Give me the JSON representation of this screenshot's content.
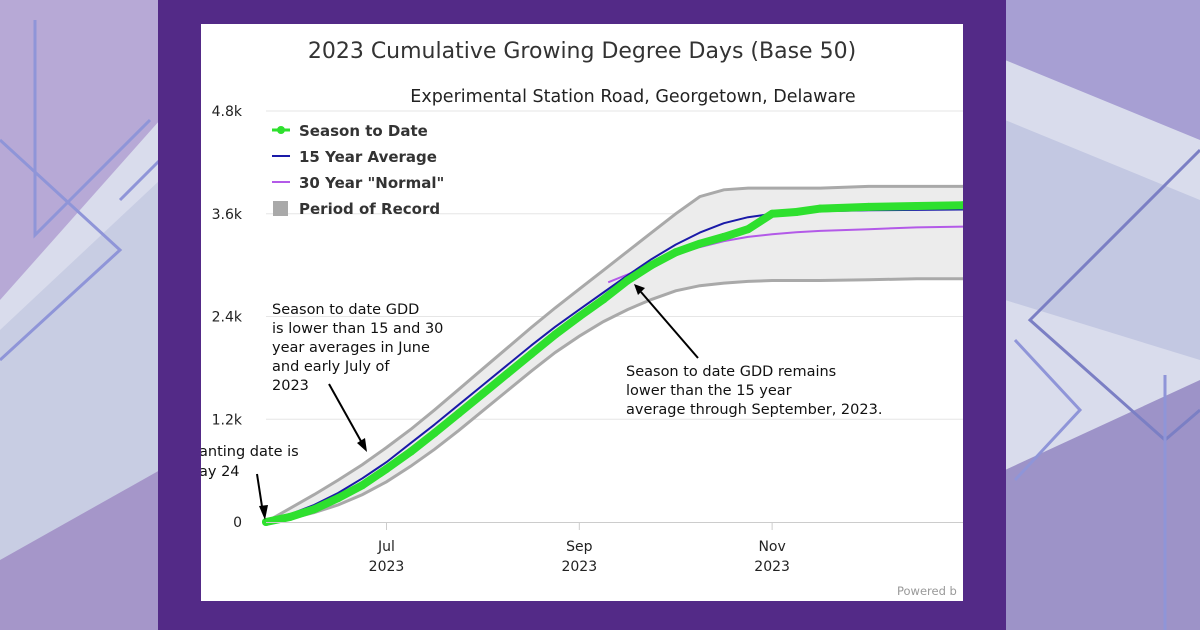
{
  "colors": {
    "frame": "#532a87",
    "season": "#2ee02e",
    "avg15": "#1a1aa8",
    "normal30": "#b35ae8",
    "record_fill": "#ececec",
    "record_stroke": "#a9a9a9",
    "grid": "#e6e6e6"
  },
  "chart_data": {
    "type": "line",
    "title": "2023 Cumulative Growing Degree Days (Base 50)",
    "subtitle": "Experimental Station Road, Georgetown, Delaware",
    "xlabel": "",
    "ylabel": "",
    "x_unit": "month (Jan 1 = 0.0)",
    "xlim": [
      4.75,
      11.98
    ],
    "ylim": [
      0,
      4800
    ],
    "y_ticks": [
      {
        "value": 0,
        "label": "0"
      },
      {
        "value": 1200,
        "label": "1.2k"
      },
      {
        "value": 2400,
        "label": "2.4k"
      },
      {
        "value": 3600,
        "label": "3.6k"
      },
      {
        "value": 4800,
        "label": "4.8k"
      }
    ],
    "x_ticks": [
      {
        "value": 6.0,
        "month": "Jul",
        "year": "2023"
      },
      {
        "value": 8.0,
        "month": "Sep",
        "year": "2023"
      },
      {
        "value": 10.0,
        "month": "Nov",
        "year": "2023"
      }
    ],
    "series": [
      {
        "name": "Season to Date",
        "key": "season",
        "x": [
          4.75,
          5.0,
          5.25,
          5.5,
          5.75,
          6.0,
          6.25,
          6.5,
          6.75,
          7.0,
          7.25,
          7.5,
          7.75,
          8.0,
          8.25,
          8.5,
          8.75,
          9.0,
          9.25,
          9.5,
          9.75,
          10.0,
          10.25,
          10.5,
          11.0,
          11.5,
          11.98
        ],
        "values": [
          0,
          60,
          150,
          280,
          430,
          620,
          820,
          1040,
          1270,
          1500,
          1730,
          1960,
          2190,
          2400,
          2600,
          2820,
          3000,
          3150,
          3250,
          3330,
          3420,
          3600,
          3620,
          3660,
          3680,
          3690,
          3700
        ]
      },
      {
        "name": "15 Year Average",
        "key": "avg15",
        "x": [
          4.75,
          5.0,
          5.25,
          5.5,
          5.75,
          6.0,
          6.25,
          6.5,
          6.75,
          7.0,
          7.25,
          7.5,
          7.75,
          8.0,
          8.25,
          8.5,
          8.75,
          9.0,
          9.25,
          9.5,
          9.75,
          10.0,
          10.5,
          11.0,
          11.98
        ],
        "values": [
          0,
          90,
          200,
          340,
          510,
          700,
          920,
          1140,
          1370,
          1600,
          1830,
          2060,
          2280,
          2480,
          2680,
          2880,
          3070,
          3240,
          3380,
          3490,
          3560,
          3600,
          3630,
          3640,
          3650
        ]
      },
      {
        "name": "30 Year \"Normal\"",
        "key": "normal30",
        "x": [
          8.3,
          8.5,
          8.75,
          9.0,
          9.25,
          9.5,
          9.75,
          10.0,
          10.25,
          10.5,
          11.0,
          11.5,
          11.98
        ],
        "values": [
          2800,
          2890,
          3010,
          3120,
          3210,
          3280,
          3330,
          3360,
          3385,
          3400,
          3420,
          3440,
          3450
        ]
      }
    ],
    "band": {
      "name": "Period of Record",
      "x": [
        4.75,
        5.0,
        5.25,
        5.5,
        5.75,
        6.0,
        6.25,
        6.5,
        6.75,
        7.0,
        7.25,
        7.5,
        7.75,
        8.0,
        8.25,
        8.5,
        8.75,
        9.0,
        9.25,
        9.5,
        9.75,
        10.0,
        10.5,
        11.0,
        11.5,
        11.98
      ],
      "upper": [
        0,
        160,
        320,
        490,
        670,
        870,
        1080,
        1310,
        1550,
        1790,
        2030,
        2270,
        2500,
        2720,
        2940,
        3160,
        3380,
        3600,
        3800,
        3880,
        3900,
        3900,
        3900,
        3920,
        3920,
        3920
      ],
      "lower": [
        0,
        40,
        110,
        200,
        320,
        470,
        650,
        850,
        1070,
        1300,
        1530,
        1760,
        1980,
        2170,
        2340,
        2480,
        2600,
        2700,
        2760,
        2790,
        2810,
        2820,
        2820,
        2830,
        2840,
        2840
      ]
    },
    "legend": [
      {
        "label": "Season to Date",
        "key": "season",
        "style": "line-marker"
      },
      {
        "label": "15 Year Average",
        "key": "avg15",
        "style": "line"
      },
      {
        "label": "30 Year \"Normal\"",
        "key": "normal30",
        "style": "line"
      },
      {
        "label": "Period of Record",
        "key": "band",
        "style": "box"
      }
    ],
    "legend_position": "top-left",
    "annotations": [
      {
        "key": "planting",
        "lines": [
          "anting date is",
          "ay 24"
        ],
        "points_to": {
          "x": 4.75,
          "y": 0
        }
      },
      {
        "key": "june",
        "lines": [
          "Season to date GDD",
          "is lower than 15 and 30",
          "year averages in June",
          "and early July of",
          "2023"
        ],
        "points_to": {
          "x": 6.2,
          "y": 820
        }
      },
      {
        "key": "sept",
        "lines": [
          "Season to date GDD remains",
          "lower than the 15 year",
          "average through September, 2023."
        ],
        "points_to": {
          "x": 8.35,
          "y": 2700
        }
      }
    ],
    "credit": "Powered b"
  }
}
